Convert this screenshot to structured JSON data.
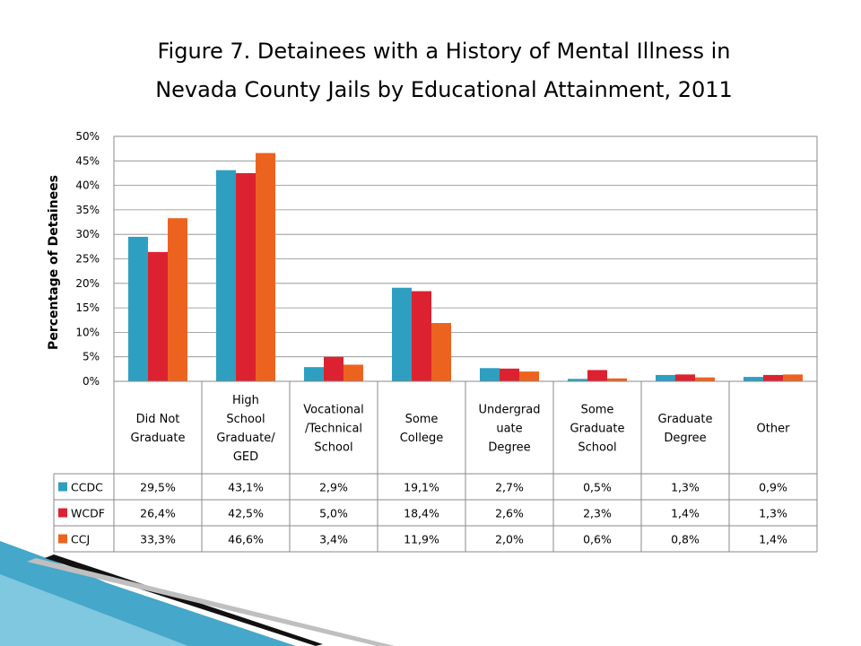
{
  "slide": {
    "title_line1": "Figure 7. Detainees with a History of Mental Illness in",
    "title_line2": "Nevada County Jails by Educational Attainment, 2011"
  },
  "chart_data": {
    "type": "bar",
    "ylabel": "Percentage of Detainees",
    "ylim": [
      0,
      50
    ],
    "y_ticks": [
      "0%",
      "5%",
      "10%",
      "15%",
      "20%",
      "25%",
      "30%",
      "35%",
      "40%",
      "45%",
      "50%"
    ],
    "grid": true,
    "legend": "data-table",
    "categories": [
      [
        "Did Not",
        "Graduate"
      ],
      [
        "High",
        "School",
        "Graduate/",
        "GED"
      ],
      [
        "Vocational",
        "/Technical",
        "School"
      ],
      [
        "Some",
        "College"
      ],
      [
        "Undergrad",
        "uate",
        "Degree"
      ],
      [
        "Some",
        "Graduate",
        "School"
      ],
      [
        "Graduate",
        "Degree"
      ],
      [
        "Other"
      ]
    ],
    "series": [
      {
        "name": "CCDC",
        "color": "#2e9fc0",
        "values": [
          29.5,
          43.1,
          2.9,
          19.1,
          2.7,
          0.5,
          1.3,
          0.9
        ],
        "labels": [
          "29,5%",
          "43,1%",
          "2,9%",
          "19,1%",
          "2,7%",
          "0,5%",
          "1,3%",
          "0,9%"
        ]
      },
      {
        "name": "WCDF",
        "color": "#dc2231",
        "values": [
          26.4,
          42.5,
          5.0,
          18.4,
          2.6,
          2.3,
          1.4,
          1.3
        ],
        "labels": [
          "26,4%",
          "42,5%",
          "5,0%",
          "18,4%",
          "2,6%",
          "2,3%",
          "1,4%",
          "1,3%"
        ]
      },
      {
        "name": "CCJ",
        "color": "#ec6320",
        "values": [
          33.3,
          46.6,
          3.4,
          11.9,
          2.0,
          0.6,
          0.8,
          1.4
        ],
        "labels": [
          "33,3%",
          "46,6%",
          "3,4%",
          "11,9%",
          "2,0%",
          "0,6%",
          "0,8%",
          "1,4%"
        ]
      }
    ]
  }
}
